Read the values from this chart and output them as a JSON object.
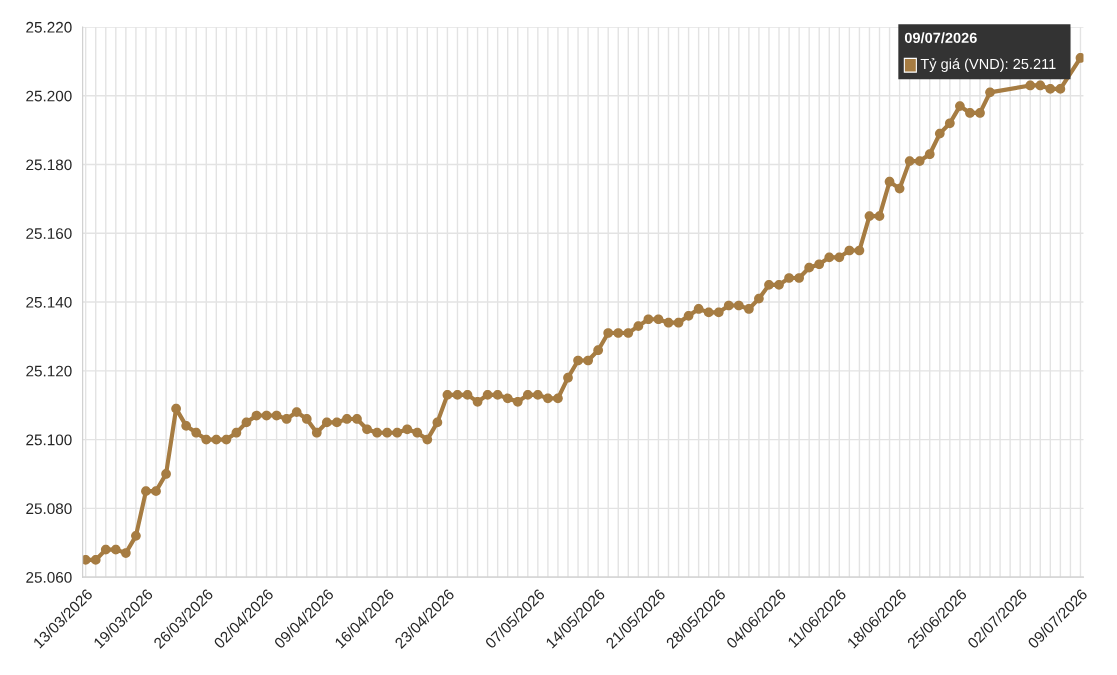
{
  "chart_data": {
    "type": "line",
    "categories": [
      "13/03/2026",
      null,
      null,
      null,
      null,
      null,
      "19/03/2026",
      null,
      null,
      null,
      null,
      null,
      "26/03/2026",
      null,
      null,
      null,
      null,
      null,
      "02/04/2026",
      null,
      null,
      null,
      null,
      null,
      "09/04/2026",
      null,
      null,
      null,
      null,
      null,
      "16/04/2026",
      null,
      null,
      null,
      null,
      null,
      "23/04/2026",
      null,
      null,
      null,
      null,
      null,
      null,
      null,
      null,
      "07/05/2026",
      null,
      null,
      null,
      null,
      null,
      "14/05/2026",
      null,
      null,
      null,
      null,
      null,
      "21/05/2026",
      null,
      null,
      null,
      null,
      null,
      "28/05/2026",
      null,
      null,
      null,
      null,
      null,
      "04/06/2026",
      null,
      null,
      null,
      null,
      null,
      "11/06/2026",
      null,
      null,
      null,
      null,
      null,
      "18/06/2026",
      null,
      null,
      null,
      null,
      null,
      "25/06/2026",
      null,
      null,
      null,
      null,
      null,
      "02/07/2026",
      null,
      null,
      null,
      null,
      null,
      "09/07/2026"
    ],
    "series": [
      {
        "color": "#a67c42",
        "values": [
          25065,
          25065,
          25068,
          25068,
          25067,
          25072,
          25085,
          25085,
          25090,
          25109,
          25104,
          25102,
          25100,
          25100,
          25100,
          25102,
          25105,
          25107,
          25107,
          25107,
          25106,
          25108,
          25106,
          25102,
          25105,
          25105,
          25106,
          25106,
          25103,
          25102,
          25102,
          25102,
          25103,
          25102,
          25100,
          25105,
          25113,
          25113,
          25113,
          25111,
          25113,
          25113,
          25112,
          25111,
          25113,
          25113,
          25112,
          25112,
          25118,
          25123,
          25123,
          25126,
          25131,
          25131,
          25131,
          25133,
          25135,
          25135,
          25134,
          25134,
          25136,
          25138,
          25137,
          25137,
          25139,
          25139,
          25138,
          25141,
          25145,
          25145,
          25147,
          25147,
          25150,
          25151,
          25153,
          25153,
          25155,
          25155,
          25165,
          25165,
          25175,
          25173,
          25181,
          25181,
          25183,
          25189,
          25192,
          25197,
          25195,
          25195,
          25201,
          null,
          null,
          null,
          25203,
          25203,
          25202,
          25202,
          null,
          25211
        ]
      }
    ],
    "annotations": [
      "09/07/2026",
      "Tỷ giá (VND): 25.211"
    ],
    "ylim": [
      25060,
      25220
    ],
    "yticks": [
      {
        "value": 25060,
        "label": "25.060"
      },
      {
        "value": 25080,
        "label": "25.080"
      },
      {
        "value": 25100,
        "label": "25.100"
      },
      {
        "value": 25120,
        "label": "25.120"
      },
      {
        "value": 25140,
        "label": "25.140"
      },
      {
        "value": 25160,
        "label": "25.160"
      },
      {
        "value": 25180,
        "label": "25.180"
      },
      {
        "value": 25200,
        "label": "25.200"
      },
      {
        "value": 25220,
        "label": "25.220"
      }
    ],
    "grid": true,
    "marker": "circle",
    "line_style": "solid",
    "legend": false
  }
}
